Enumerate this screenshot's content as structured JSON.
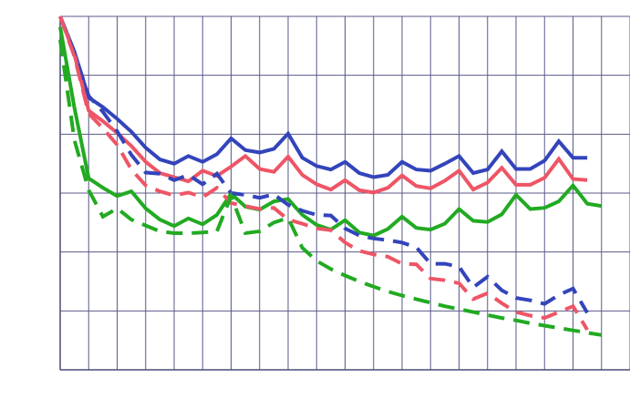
{
  "chart_data": {
    "type": "line",
    "title": "",
    "xlabel": "",
    "ylabel": "",
    "grid": true,
    "xlim": [
      0,
      40
    ],
    "ylim": [
      0,
      6
    ],
    "x_gridlines": [
      0,
      2,
      4,
      6,
      8,
      10,
      12,
      14,
      16,
      18,
      20,
      22,
      24,
      26,
      28,
      30,
      32,
      34,
      36,
      38,
      40
    ],
    "y_gridlines": [
      0,
      1,
      2,
      3,
      4,
      5,
      6
    ],
    "series": [
      {
        "color": "#3344bb",
        "dash": "solid",
        "points": [
          [
            0,
            6
          ],
          [
            1,
            5.4
          ],
          [
            2,
            4.62
          ],
          [
            3,
            4.46
          ],
          [
            4,
            4.26
          ],
          [
            5,
            4.04
          ],
          [
            6,
            3.77
          ],
          [
            7,
            3.57
          ],
          [
            8,
            3.5
          ],
          [
            9,
            3.63
          ],
          [
            10,
            3.53
          ],
          [
            11,
            3.66
          ],
          [
            12,
            3.93
          ],
          [
            13,
            3.73
          ],
          [
            14,
            3.69
          ],
          [
            15,
            3.75
          ],
          [
            16,
            4.01
          ],
          [
            17,
            3.6
          ],
          [
            18,
            3.46
          ],
          [
            19,
            3.4
          ],
          [
            20,
            3.53
          ],
          [
            21,
            3.34
          ],
          [
            22,
            3.27
          ],
          [
            23,
            3.31
          ],
          [
            24,
            3.53
          ],
          [
            25,
            3.4
          ],
          [
            26,
            3.38
          ],
          [
            27,
            3.5
          ],
          [
            28,
            3.63
          ],
          [
            29,
            3.34
          ],
          [
            30,
            3.4
          ],
          [
            31,
            3.71
          ],
          [
            32,
            3.41
          ],
          [
            33,
            3.41
          ],
          [
            34,
            3.55
          ],
          [
            35,
            3.88
          ],
          [
            36,
            3.6
          ],
          [
            37,
            3.6
          ]
        ]
      },
      {
        "color": "#ee5566",
        "dash": "solid",
        "points": [
          [
            0,
            6
          ],
          [
            1,
            5.35
          ],
          [
            2,
            4.4
          ],
          [
            3,
            4.22
          ],
          [
            4,
            4.02
          ],
          [
            5,
            3.8
          ],
          [
            6,
            3.53
          ],
          [
            7,
            3.34
          ],
          [
            8,
            3.27
          ],
          [
            9,
            3.2
          ],
          [
            10,
            3.38
          ],
          [
            11,
            3.29
          ],
          [
            12,
            3.45
          ],
          [
            13,
            3.63
          ],
          [
            14,
            3.41
          ],
          [
            15,
            3.36
          ],
          [
            16,
            3.62
          ],
          [
            17,
            3.31
          ],
          [
            18,
            3.15
          ],
          [
            19,
            3.06
          ],
          [
            20,
            3.22
          ],
          [
            21,
            3.05
          ],
          [
            22,
            3.01
          ],
          [
            23,
            3.09
          ],
          [
            24,
            3.3
          ],
          [
            25,
            3.12
          ],
          [
            26,
            3.08
          ],
          [
            27,
            3.21
          ],
          [
            28,
            3.38
          ],
          [
            29,
            3.06
          ],
          [
            30,
            3.18
          ],
          [
            31,
            3.43
          ],
          [
            32,
            3.14
          ],
          [
            33,
            3.14
          ],
          [
            34,
            3.26
          ],
          [
            35,
            3.58
          ],
          [
            36,
            3.24
          ],
          [
            37,
            3.22
          ]
        ]
      },
      {
        "color": "#22aa22",
        "dash": "solid",
        "points": [
          [
            0,
            5.82
          ],
          [
            1,
            4.45
          ],
          [
            2,
            3.25
          ],
          [
            3,
            3.09
          ],
          [
            4,
            2.95
          ],
          [
            5,
            3.03
          ],
          [
            6,
            2.74
          ],
          [
            7,
            2.55
          ],
          [
            8,
            2.44
          ],
          [
            9,
            2.57
          ],
          [
            10,
            2.47
          ],
          [
            11,
            2.63
          ],
          [
            12,
            2.99
          ],
          [
            13,
            2.77
          ],
          [
            14,
            2.72
          ],
          [
            15,
            2.86
          ],
          [
            16,
            2.9
          ],
          [
            17,
            2.63
          ],
          [
            18,
            2.46
          ],
          [
            19,
            2.38
          ],
          [
            20,
            2.54
          ],
          [
            21,
            2.33
          ],
          [
            22,
            2.28
          ],
          [
            23,
            2.39
          ],
          [
            24,
            2.6
          ],
          [
            25,
            2.41
          ],
          [
            26,
            2.38
          ],
          [
            27,
            2.48
          ],
          [
            28,
            2.73
          ],
          [
            29,
            2.53
          ],
          [
            30,
            2.51
          ],
          [
            31,
            2.64
          ],
          [
            32,
            2.97
          ],
          [
            33,
            2.73
          ],
          [
            34,
            2.75
          ],
          [
            35,
            2.86
          ],
          [
            36,
            3.13
          ],
          [
            37,
            2.82
          ],
          [
            38,
            2.78
          ]
        ]
      },
      {
        "color": "#3344bb",
        "dash": "dashed",
        "points": [
          [
            0,
            6
          ],
          [
            1,
            5.38
          ],
          [
            2,
            4.65
          ],
          [
            3,
            4.38
          ],
          [
            4,
            4.05
          ],
          [
            5,
            3.65
          ],
          [
            6,
            3.35
          ],
          [
            7,
            3.33
          ],
          [
            8,
            3.22
          ],
          [
            9,
            3.31
          ],
          [
            10,
            3.15
          ],
          [
            11,
            3.33
          ],
          [
            12,
            3.0
          ],
          [
            13,
            2.97
          ],
          [
            14,
            2.92
          ],
          [
            15,
            2.98
          ],
          [
            16,
            2.8
          ],
          [
            17,
            2.7
          ],
          [
            18,
            2.63
          ],
          [
            19,
            2.62
          ],
          [
            20,
            2.4
          ],
          [
            21,
            2.28
          ],
          [
            22,
            2.23
          ],
          [
            23,
            2.2
          ],
          [
            24,
            2.16
          ],
          [
            25,
            2.08
          ],
          [
            26,
            1.8
          ],
          [
            27,
            1.8
          ],
          [
            28,
            1.75
          ],
          [
            29,
            1.4
          ],
          [
            30,
            1.58
          ],
          [
            31,
            1.35
          ],
          [
            32,
            1.22
          ],
          [
            33,
            1.18
          ],
          [
            34,
            1.12
          ],
          [
            35,
            1.27
          ],
          [
            36,
            1.38
          ],
          [
            37,
            0.97
          ]
        ]
      },
      {
        "color": "#ee5566",
        "dash": "dashed",
        "points": [
          [
            0,
            6
          ],
          [
            1,
            5.32
          ],
          [
            2,
            4.35
          ],
          [
            3,
            4.1
          ],
          [
            4,
            3.82
          ],
          [
            5,
            3.4
          ],
          [
            6,
            3.13
          ],
          [
            7,
            3.03
          ],
          [
            8,
            2.96
          ],
          [
            9,
            3.01
          ],
          [
            10,
            2.93
          ],
          [
            11,
            3.09
          ],
          [
            12,
            2.83
          ],
          [
            13,
            2.78
          ],
          [
            14,
            2.73
          ],
          [
            15,
            2.75
          ],
          [
            16,
            2.55
          ],
          [
            17,
            2.48
          ],
          [
            18,
            2.4
          ],
          [
            19,
            2.37
          ],
          [
            20,
            2.16
          ],
          [
            21,
            2.02
          ],
          [
            22,
            1.96
          ],
          [
            23,
            1.92
          ],
          [
            24,
            1.8
          ],
          [
            25,
            1.79
          ],
          [
            26,
            1.55
          ],
          [
            27,
            1.52
          ],
          [
            28,
            1.47
          ],
          [
            29,
            1.2
          ],
          [
            30,
            1.3
          ],
          [
            31,
            1.13
          ],
          [
            32,
            0.98
          ],
          [
            33,
            0.92
          ],
          [
            34,
            0.88
          ],
          [
            35,
            0.98
          ],
          [
            36,
            1.08
          ],
          [
            37,
            0.68
          ]
        ]
      },
      {
        "color": "#22aa22",
        "dash": "dashed",
        "points": [
          [
            0,
            5.6
          ],
          [
            1,
            3.9
          ],
          [
            2,
            3.05
          ],
          [
            3,
            2.6
          ],
          [
            4,
            2.74
          ],
          [
            5,
            2.55
          ],
          [
            6,
            2.45
          ],
          [
            7,
            2.35
          ],
          [
            8,
            2.32
          ],
          [
            9,
            2.32
          ],
          [
            10,
            2.33
          ],
          [
            11,
            2.35
          ],
          [
            12,
            2.95
          ],
          [
            13,
            2.32
          ],
          [
            14,
            2.35
          ],
          [
            15,
            2.5
          ],
          [
            16,
            2.58
          ],
          [
            17,
            2.07
          ],
          [
            18,
            1.85
          ],
          [
            19,
            1.71
          ],
          [
            20,
            1.6
          ],
          [
            21,
            1.5
          ],
          [
            22,
            1.41
          ],
          [
            23,
            1.33
          ],
          [
            24,
            1.26
          ],
          [
            25,
            1.2
          ],
          [
            26,
            1.14
          ],
          [
            27,
            1.08
          ],
          [
            28,
            1.03
          ],
          [
            29,
            0.98
          ],
          [
            30,
            0.93
          ],
          [
            31,
            0.88
          ],
          [
            32,
            0.84
          ],
          [
            33,
            0.79
          ],
          [
            34,
            0.75
          ],
          [
            35,
            0.71
          ],
          [
            36,
            0.67
          ],
          [
            37,
            0.63
          ],
          [
            38,
            0.59
          ]
        ]
      }
    ]
  }
}
